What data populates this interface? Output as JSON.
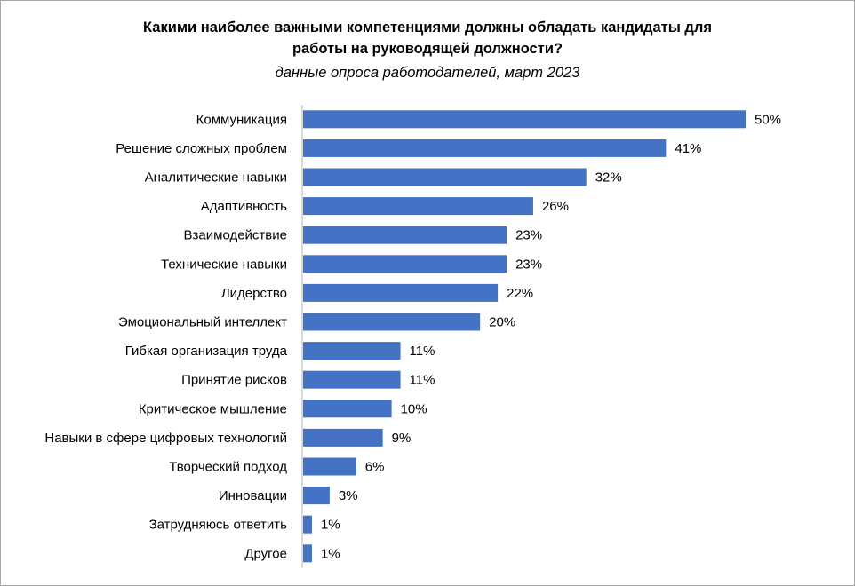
{
  "chart_data": {
    "type": "bar",
    "orientation": "horizontal",
    "title": "Какими наиболее важными компетенциями должны обладать кандидаты для работы на руководящей должности?",
    "title_lines": [
      "Какими наиболее важными компетенциями должны обладать кандидаты для",
      "работы на руководящей должности?"
    ],
    "subtitle": "данные опроса работодателей, март 2023",
    "categories": [
      "Коммуникация",
      "Решение сложных проблем",
      "Аналитические навыки",
      "Адаптивность",
      "Взаимодействие",
      "Технические навыки",
      "Лидерство",
      "Эмоциональный интеллект",
      "Гибкая организация труда",
      "Принятие рисков",
      "Критическое мышление",
      "Навыки в сфере цифровых технологий",
      "Творческий подход",
      "Инновации",
      "Затрудняюсь ответить",
      "Другое"
    ],
    "values": [
      50,
      41,
      32,
      26,
      23,
      23,
      22,
      20,
      11,
      11,
      10,
      9,
      6,
      3,
      1,
      1
    ],
    "data_labels": [
      "50%",
      "41%",
      "32%",
      "26%",
      "23%",
      "23%",
      "22%",
      "20%",
      "11%",
      "11%",
      "10%",
      "9%",
      "6%",
      "3%",
      "1%",
      "1%"
    ],
    "value_unit": "%",
    "xlim": [
      0,
      50
    ],
    "grid": false,
    "legend": "none",
    "bar_color": "#4472C4",
    "axis_color": "#D9D9D9"
  }
}
